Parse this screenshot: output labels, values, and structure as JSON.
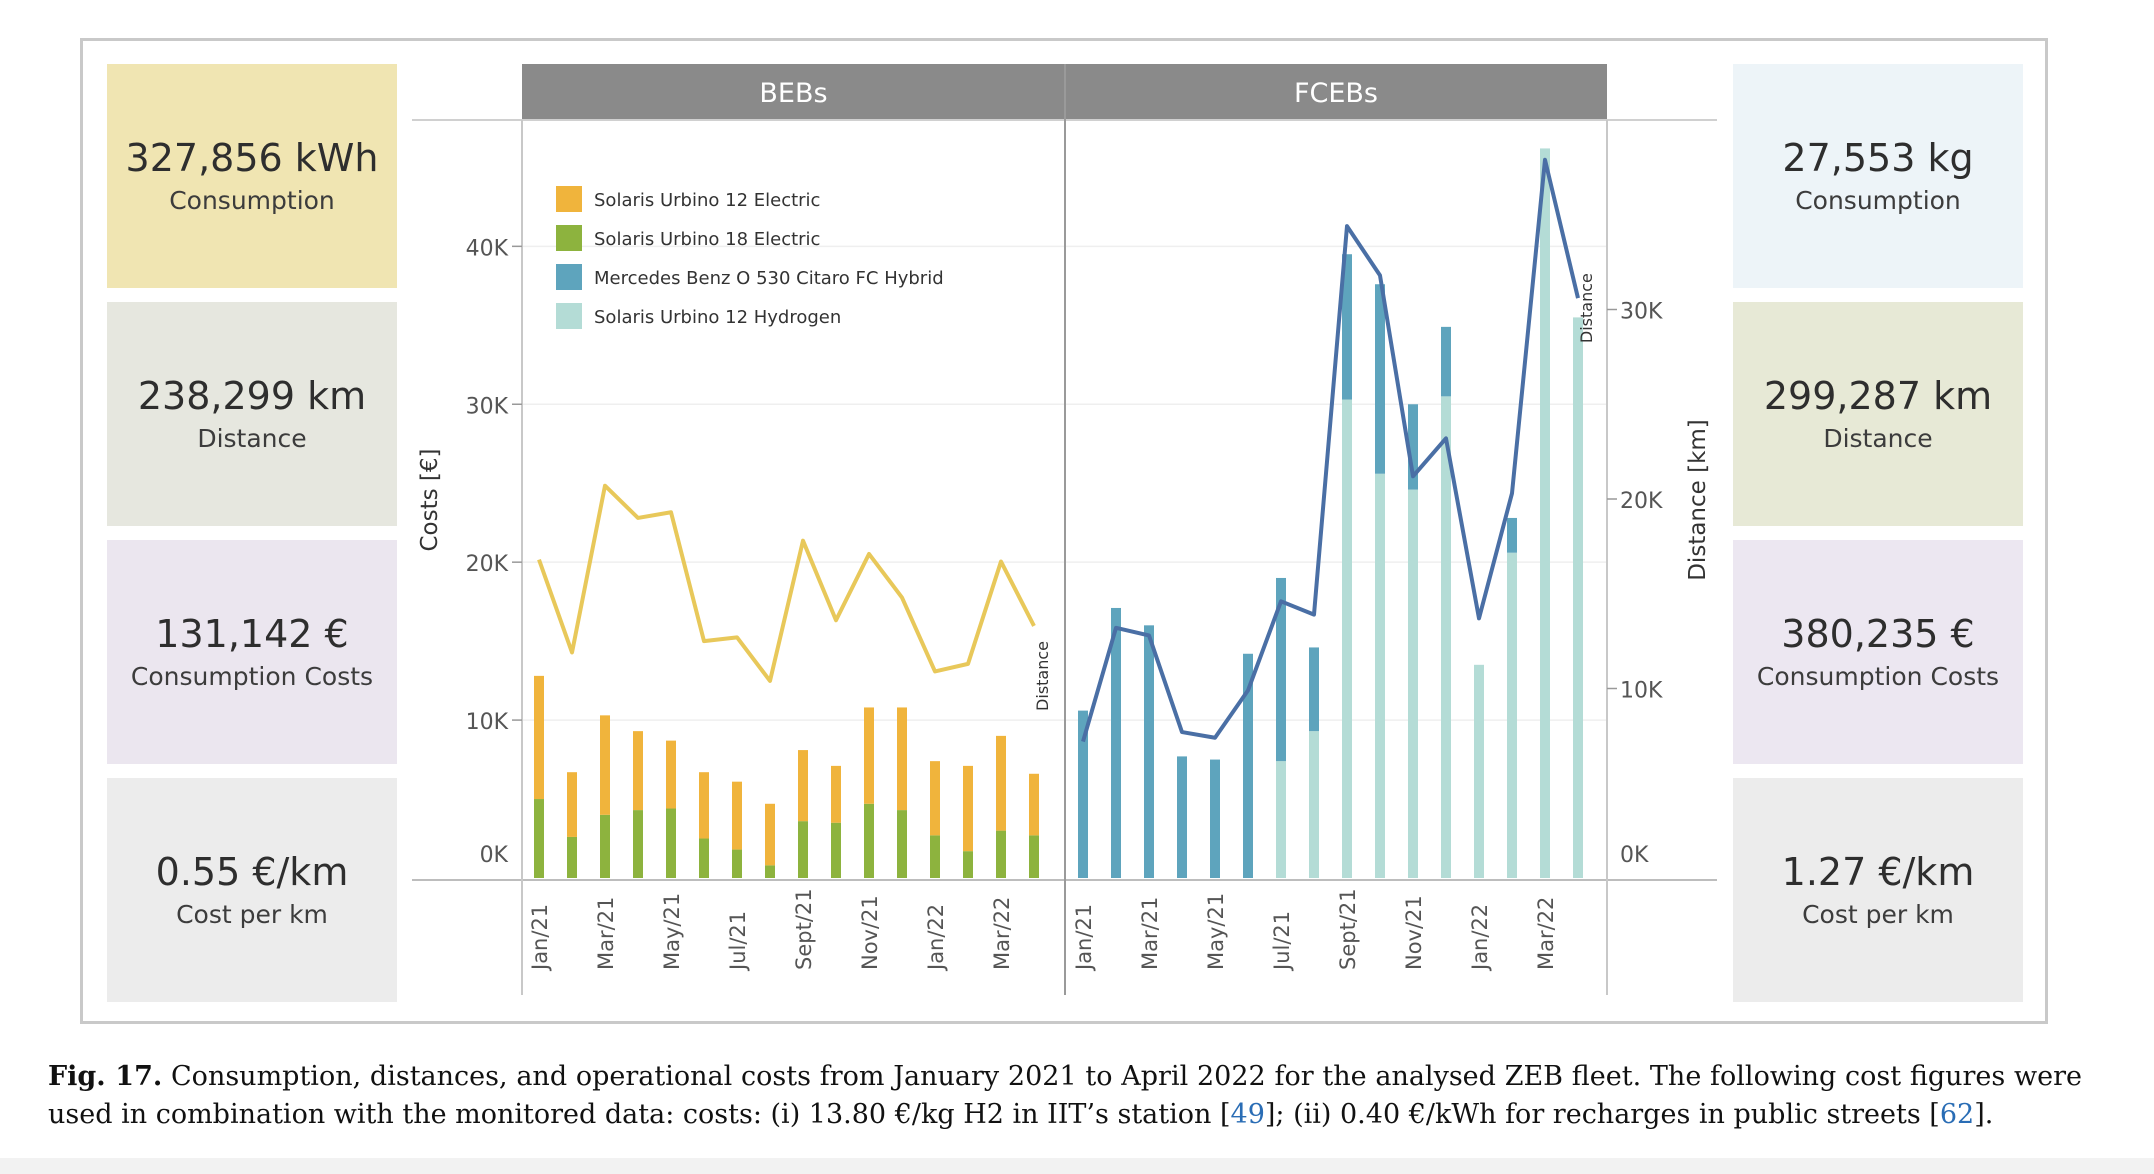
{
  "left_kpis": [
    {
      "value": "327,856 kWh",
      "label": "Consumption",
      "bg": "#f0e5b2"
    },
    {
      "value": "238,299 km",
      "label": "Distance",
      "bg": "#e6e7df"
    },
    {
      "value": "131,142 €",
      "label": "Consumption Costs",
      "bg": "#ebe6ef"
    },
    {
      "value": "0.55 €/km",
      "label": "Cost per km",
      "bg": "#ececec"
    }
  ],
  "right_kpis": [
    {
      "value": "27,553 kg",
      "label": "Consumption",
      "bg": "#edf4f8"
    },
    {
      "value": "299,287 km",
      "label": "Distance",
      "bg": "#e7e9d6"
    },
    {
      "value": "380,235 €",
      "label": "Consumption Costs",
      "bg": "#ece7f1"
    },
    {
      "value": "1.27 €/km",
      "label": "Cost per km",
      "bg": "#ececec"
    }
  ],
  "chart_data": {
    "type": "bar",
    "panels": [
      "BEBs",
      "FCEBs"
    ],
    "ylabel": "Costs [€]",
    "y2label": "Distance [km]",
    "line_label": "Distance",
    "ylim": [
      0,
      48000
    ],
    "y2lim": [
      0,
      40000
    ],
    "y_ticks": [
      "0K",
      "10K",
      "20K",
      "30K",
      "40K"
    ],
    "y_tick_values": [
      0,
      10000,
      20000,
      30000,
      40000
    ],
    "y2_ticks": [
      "0K",
      "10K",
      "20K",
      "30K"
    ],
    "y2_tick_values": [
      0,
      10000,
      20000,
      30000
    ],
    "legend": [
      {
        "name": "Solaris Urbino 12 Electric",
        "color": "#f0b43c"
      },
      {
        "name": "Solaris Urbino 18 Electric",
        "color": "#8db33e"
      },
      {
        "name": "Mercedes Benz O 530 Citaro FC Hybrid",
        "color": "#5ea4bd"
      },
      {
        "name": "Solaris Urbino 12 Hydrogen",
        "color": "#b4dcd6"
      }
    ],
    "colors": {
      "line_beb": "#e8c85a",
      "line_fceb": "#4a6fa5"
    },
    "months": [
      "Jan/21",
      "Feb/21",
      "Mar/21",
      "Apr/21",
      "May/21",
      "Jun/21",
      "Jul/21",
      "Aug/21",
      "Sept/21",
      "Oct/21",
      "Nov/21",
      "Dec/21",
      "Jan/22",
      "Feb/22",
      "Mar/22",
      "Apr/22"
    ],
    "tick_labels": [
      "Jan/21",
      "",
      "Mar/21",
      "",
      "May/21",
      "",
      "Jul/21",
      "",
      "Sept/21",
      "",
      "Nov/21",
      "",
      "Jan/22",
      "",
      "Mar/22",
      ""
    ],
    "bebs": {
      "series": [
        {
          "name": "Solaris Urbino 18 Electric",
          "values": [
            5000,
            2600,
            4000,
            4300,
            4400,
            2500,
            1800,
            800,
            3600,
            3500,
            4700,
            4300,
            2700,
            1700,
            3000,
            2700
          ]
        },
        {
          "name": "Solaris Urbino 12 Electric",
          "values": [
            7800,
            4100,
            6300,
            5000,
            4300,
            4200,
            4300,
            3900,
            4500,
            3600,
            6100,
            6500,
            4700,
            5400,
            6000,
            3900
          ]
        }
      ],
      "distance": [
        16800,
        11900,
        20700,
        19000,
        19300,
        12500,
        12700,
        10400,
        17800,
        13600,
        17100,
        14800,
        10900,
        11300,
        16700,
        13300
      ]
    },
    "fcebs": {
      "series": [
        {
          "name": "Solaris Urbino 12 Hydrogen",
          "values": [
            0,
            0,
            0,
            0,
            0,
            0,
            7400,
            9300,
            30300,
            25600,
            24600,
            30500,
            13500,
            20600,
            46200,
            35500
          ]
        },
        {
          "name": "Mercedes Benz O 530 Citaro FC Hybrid",
          "values": [
            10600,
            17100,
            16000,
            7700,
            7500,
            14200,
            11600,
            5300,
            9200,
            12000,
            5400,
            4400,
            0,
            2200,
            0,
            0
          ]
        }
      ],
      "distance": [
        7200,
        13200,
        12800,
        7700,
        7400,
        9900,
        14600,
        13900,
        34400,
        31800,
        21200,
        23200,
        13700,
        20300,
        37900,
        30600
      ]
    }
  },
  "caption": {
    "label": "Fig. 17.",
    "text_1": " Consumption, distances, and operational costs from January 2021 to April 2022 for the analysed ZEB fleet. The following cost figures were used in combination with the monitored data: costs: (i) 13.80 €/kg H2 in IIT’s station [",
    "ref_1": "49",
    "text_2": "]; (ii) 0.40 €/kWh for recharges in public streets [",
    "ref_2": "62",
    "text_3": "]."
  }
}
